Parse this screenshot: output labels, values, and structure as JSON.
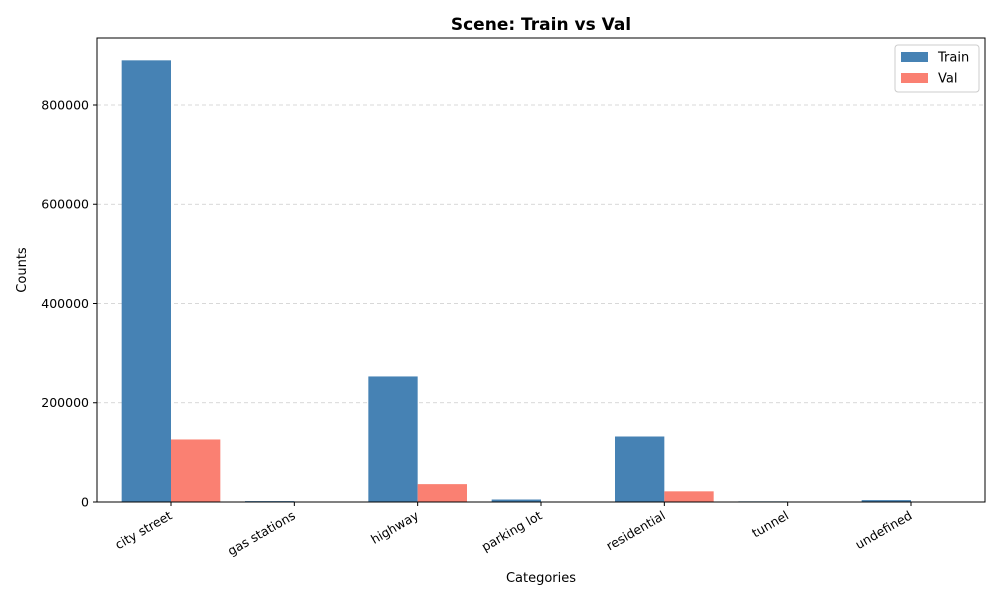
{
  "chart_data": {
    "type": "bar",
    "title": "Scene: Train vs Val",
    "xlabel": "Categories",
    "ylabel": "Counts",
    "categories": [
      "city street",
      "gas stations",
      "highway",
      "parking lot",
      "residential",
      "tunnel",
      "undefined"
    ],
    "series": [
      {
        "name": "Train",
        "color": "#4682b4",
        "values": [
          890000,
          1800,
          253000,
          5000,
          132000,
          1300,
          3800
        ]
      },
      {
        "name": "Val",
        "color": "#fa8072",
        "values": [
          126000,
          250,
          36000,
          900,
          21500,
          200,
          600
        ]
      }
    ],
    "ylim": [
      0,
      935000
    ],
    "yticks": [
      0,
      200000,
      400000,
      600000,
      800000
    ],
    "ytick_labels": [
      "0",
      "200000",
      "400000",
      "600000",
      "800000"
    ],
    "grid": "y-dashed",
    "legend_position": "top-right"
  }
}
